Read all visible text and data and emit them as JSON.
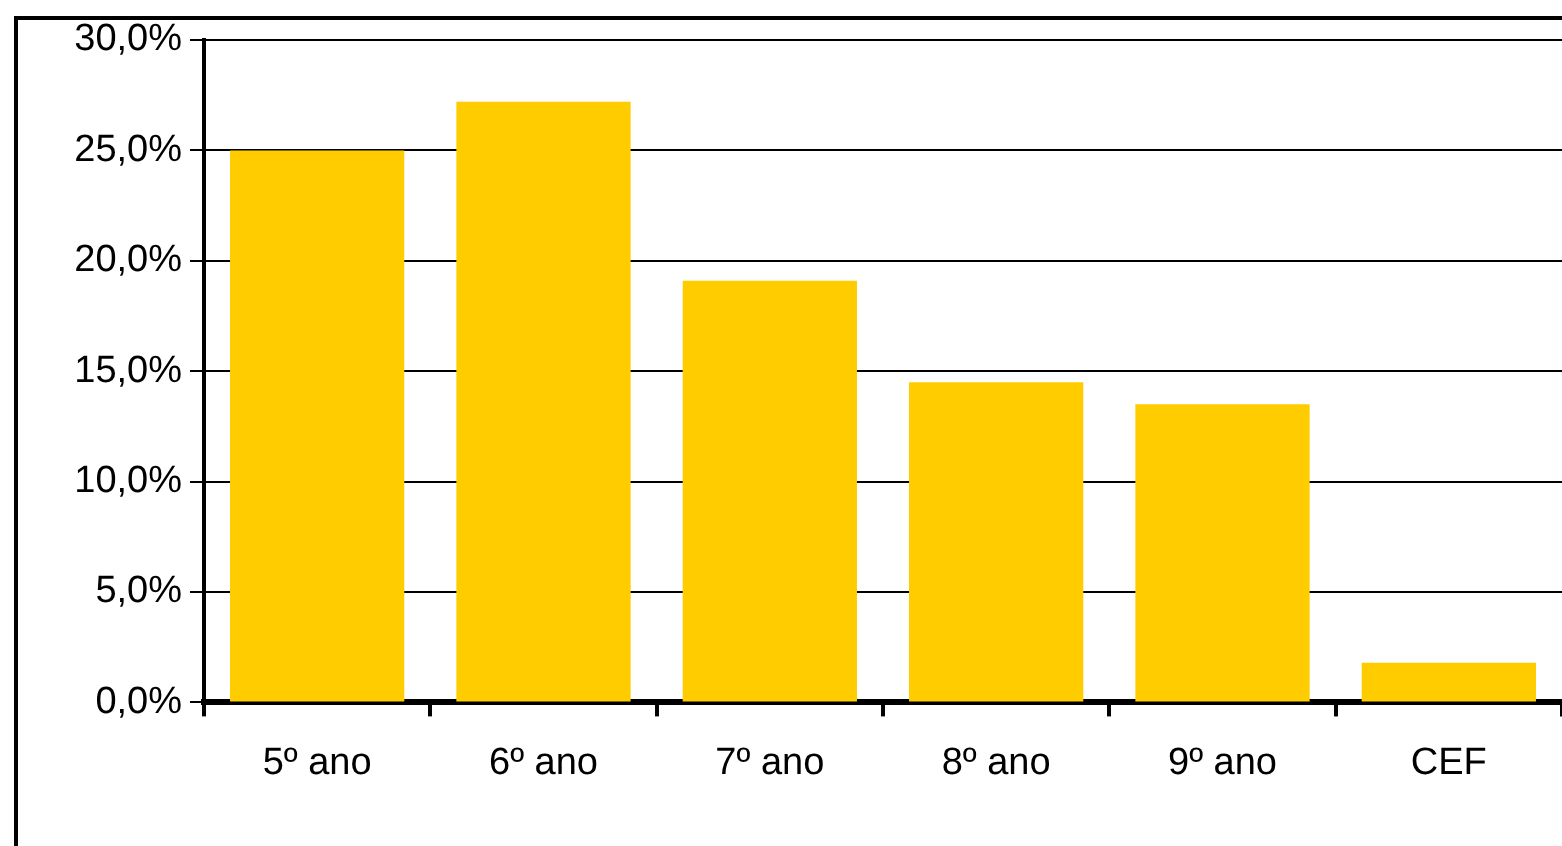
{
  "chart_data": {
    "type": "bar",
    "categories": [
      "5º ano",
      "6º ano",
      "7º ano",
      "8º ano",
      "9º ano",
      "CEF"
    ],
    "values": [
      25.0,
      27.2,
      19.1,
      14.5,
      13.5,
      1.8
    ],
    "color": "#ffcc00",
    "ylim": [
      0,
      30
    ],
    "yticks": [
      {
        "value": 0,
        "label": "0,0%"
      },
      {
        "value": 5,
        "label": "5,0%"
      },
      {
        "value": 10,
        "label": "10,0%"
      },
      {
        "value": 15,
        "label": "15,0%"
      },
      {
        "value": 20,
        "label": "20,0%"
      },
      {
        "value": 25,
        "label": "25,0%"
      },
      {
        "value": 30,
        "label": "30,0%"
      }
    ],
    "grid": "y",
    "legend": false
  }
}
